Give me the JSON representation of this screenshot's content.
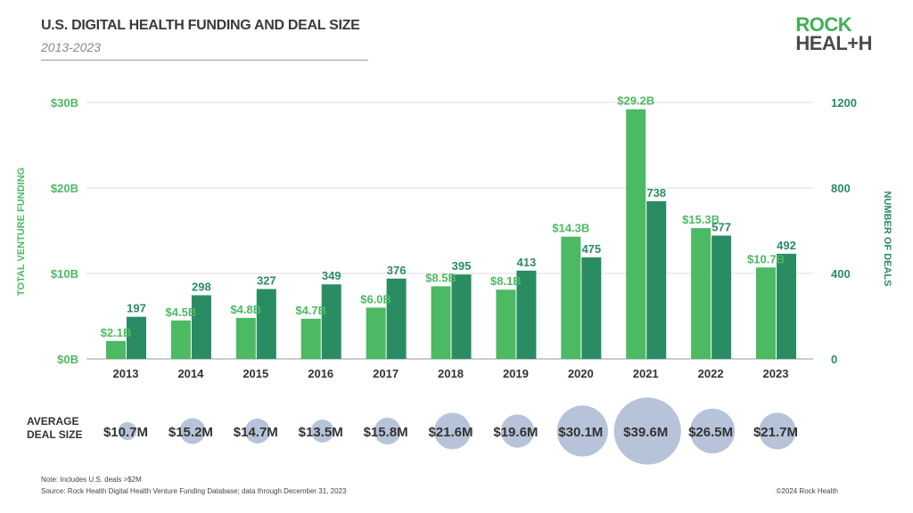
{
  "header": {
    "title": "U.S. DIGITAL HEALTH FUNDING AND DEAL SIZE",
    "subtitle": "2013-2023"
  },
  "logo": {
    "line1": "ROCK",
    "line2": "HEAL+H"
  },
  "colors": {
    "funding": "#4cb963",
    "deals": "#2a8c63",
    "bubble": "#b6c3d9",
    "left_axis": "#4cb963",
    "right_axis": "#2a8c63"
  },
  "chart_data": {
    "type": "bar",
    "categories": [
      "2013",
      "2014",
      "2015",
      "2016",
      "2017",
      "2018",
      "2019",
      "2020",
      "2021",
      "2022",
      "2023"
    ],
    "series": [
      {
        "name": "TOTAL VENTURE FUNDING",
        "axis": "left",
        "values": [
          2.1,
          4.5,
          4.8,
          4.7,
          6.0,
          8.5,
          8.1,
          14.3,
          29.2,
          15.3,
          10.7
        ],
        "labels": [
          "$2.1B",
          "$4.5B",
          "$4.8B",
          "$4.7B",
          "$6.0B",
          "$8.5B",
          "$8.1B",
          "$14.3B",
          "$29.2B",
          "$15.3B",
          "$10.7B"
        ]
      },
      {
        "name": "NUMBER OF DEALS",
        "axis": "right",
        "values": [
          197,
          298,
          327,
          349,
          376,
          395,
          413,
          475,
          738,
          577,
          492
        ],
        "labels": [
          "197",
          "298",
          "327",
          "349",
          "376",
          "395",
          "413",
          "475",
          "738",
          "577",
          "492"
        ]
      }
    ],
    "ylabel": "TOTAL VENTURE FUNDING",
    "y2label": "NUMBER OF DEALS",
    "ylim": [
      0,
      30
    ],
    "y2lim": [
      0,
      1200
    ],
    "yticks": [
      "$0B",
      "$10B",
      "$20B",
      "$30B"
    ],
    "y2ticks": [
      "0",
      "400",
      "800",
      "1200"
    ],
    "grid": true,
    "bubbles": {
      "label_line1": "AVERAGE",
      "label_line2": "DEAL SIZE",
      "values": [
        10.7,
        15.2,
        14.7,
        13.5,
        15.8,
        21.6,
        19.6,
        30.1,
        39.6,
        26.5,
        21.7
      ],
      "labels": [
        "$10.7M",
        "$15.2M",
        "$14.7M",
        "$13.5M",
        "$15.8M",
        "$21.6M",
        "$19.6M",
        "$30.1M",
        "$39.6M",
        "$26.5M",
        "$21.7M"
      ]
    }
  },
  "footer": {
    "note": "Note: Includes U.S. deals >$2M",
    "source": "Source: Rock Health Digital Health Venture Funding Database; data through December 31, 2023",
    "copyright": "©2024 Rock Health"
  }
}
